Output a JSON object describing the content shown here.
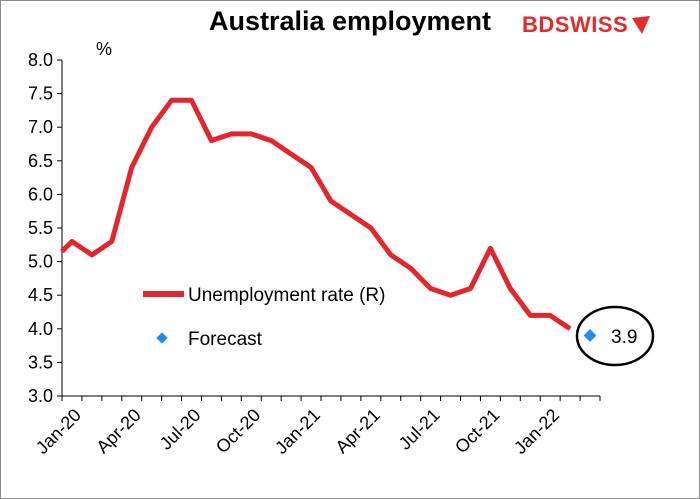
{
  "header": {
    "title": "Australia employment",
    "logo_text_a": "BD",
    "logo_text_b": "SWISS"
  },
  "colors": {
    "line": "#e3262d",
    "forecast": "#1f8bf0",
    "logo": "#e42a2a"
  },
  "chart_data": {
    "type": "line",
    "title": "Australia employment",
    "ylabel": "%",
    "xlabel": "",
    "ylim": [
      3.0,
      8.0
    ],
    "yticks": [
      "8.0",
      "7.5",
      "7.0",
      "6.5",
      "6.0",
      "5.5",
      "5.0",
      "4.5",
      "4.0",
      "3.5",
      "3.0"
    ],
    "x_tick_labels": [
      "Jan-20",
      "Apr-20",
      "Jul-20",
      "Oct-20",
      "Jan-21",
      "Apr-21",
      "Jul-21",
      "Oct-21",
      "Jan-22"
    ],
    "x": [
      "Jan-20",
      "Feb-20",
      "Mar-20",
      "Apr-20",
      "May-20",
      "Jun-20",
      "Jul-20",
      "Aug-20",
      "Sep-20",
      "Oct-20",
      "Nov-20",
      "Dec-20",
      "Jan-21",
      "Feb-21",
      "Mar-21",
      "Apr-21",
      "May-21",
      "Jun-21",
      "Jul-21",
      "Aug-21",
      "Sep-21",
      "Oct-21",
      "Nov-21",
      "Dec-21",
      "Jan-22",
      "Feb-22",
      "Mar-22"
    ],
    "series": [
      {
        "name": "Unemployment rate (R)",
        "values": [
          5.3,
          5.1,
          5.3,
          6.4,
          7.0,
          7.4,
          7.4,
          6.8,
          6.9,
          6.9,
          6.8,
          6.6,
          6.4,
          5.9,
          5.7,
          5.5,
          5.1,
          4.9,
          4.6,
          4.5,
          4.6,
          5.2,
          4.6,
          4.2,
          4.2,
          4.0,
          null
        ]
      },
      {
        "name": "Forecast",
        "values": [
          null,
          null,
          null,
          null,
          null,
          null,
          null,
          null,
          null,
          null,
          null,
          null,
          null,
          null,
          null,
          null,
          null,
          null,
          null,
          null,
          null,
          null,
          null,
          null,
          null,
          null,
          3.9
        ]
      }
    ],
    "series_start_value": 5.15,
    "annotation": "3.9",
    "legend_placement": "center-left",
    "grid": false
  }
}
